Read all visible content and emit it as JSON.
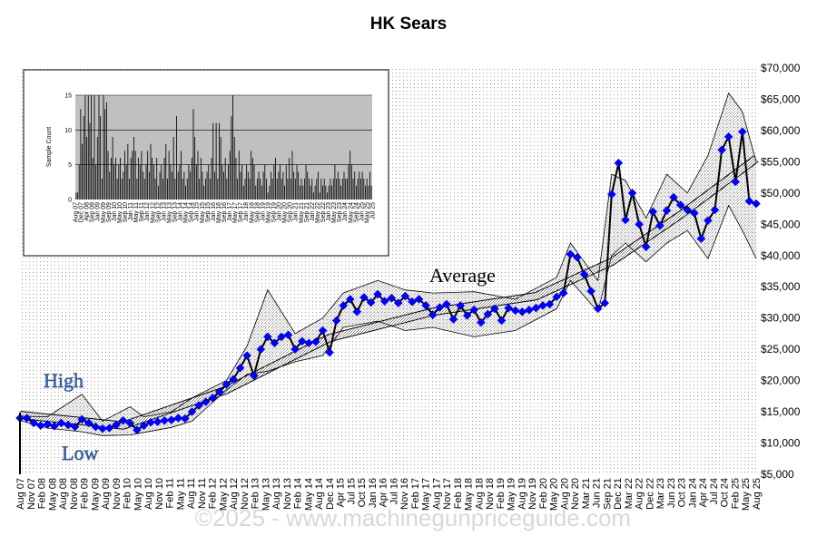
{
  "chart_data": {
    "type": "line",
    "title": "HK Sears",
    "watermark": "©2025 - www.machinegunpriceguide.com",
    "annotations": {
      "high": "High",
      "low": "Low",
      "average": "Average"
    },
    "y_axis": {
      "min": 5000,
      "max": 70000,
      "step": 5000,
      "tick_labels": [
        "$5,000",
        "$10,000",
        "$15,000",
        "$20,000",
        "$25,000",
        "$30,000",
        "$35,000",
        "$40,000",
        "$45,000",
        "$50,000",
        "$55,000",
        "$60,000",
        "$65,000",
        "$70,000"
      ]
    },
    "x_axis": {
      "tick_labels": [
        "Aug 07",
        "Nov 07",
        "Feb 08",
        "May 08",
        "Aug 08",
        "Nov 08",
        "Feb 09",
        "May 09",
        "Aug 09",
        "Nov 09",
        "Feb 10",
        "May 10",
        "Aug 10",
        "Nov 10",
        "Feb 11",
        "May 11",
        "Aug 11",
        "Nov 11",
        "Feb 12",
        "May 12",
        "Aug 12",
        "Nov 12",
        "Feb 13",
        "May 13",
        "Aug 13",
        "Nov 13",
        "Feb 14",
        "May 14",
        "Aug 14",
        "Dec 14",
        "Apr 15",
        "Jul 15",
        "Oct 15",
        "Jan 16",
        "Apr 16",
        "Jul 16",
        "Nov 16",
        "Feb 17",
        "May 17",
        "Aug 17",
        "Nov 17",
        "Feb 18",
        "May 18",
        "Aug 18",
        "Nov 18",
        "Feb 19",
        "May 19",
        "Aug 19",
        "Nov 19",
        "Feb 20",
        "May 20",
        "Aug 20",
        "Nov 20",
        "Mar 21",
        "Jun 21",
        "Sep 21",
        "Dec 21",
        "Mar 22",
        "Aug 22",
        "Dec 22",
        "Mar 23",
        "Jun 23",
        "Oct 23",
        "Jan 24",
        "Apr 24",
        "Jul 24",
        "Oct 24",
        "Feb 25",
        "May 25",
        "Aug 25"
      ]
    },
    "grid": true,
    "series": [
      {
        "name": "Average",
        "color": "#0000ff",
        "values": [
          [
            0,
            14000
          ],
          [
            1,
            14000
          ],
          [
            2,
            13200
          ],
          [
            3,
            12800
          ],
          [
            4,
            13000
          ],
          [
            5,
            12700
          ],
          [
            6,
            13200
          ],
          [
            7,
            12900
          ],
          [
            8,
            12600
          ],
          [
            9,
            13800
          ],
          [
            10,
            13200
          ],
          [
            11,
            12600
          ],
          [
            12,
            12300
          ],
          [
            13,
            12400
          ],
          [
            14,
            12900
          ],
          [
            15,
            13600
          ],
          [
            16,
            13200
          ],
          [
            17,
            12100
          ],
          [
            18,
            12800
          ],
          [
            19,
            13300
          ],
          [
            20,
            13400
          ],
          [
            21,
            13600
          ],
          [
            22,
            13700
          ],
          [
            23,
            14000
          ],
          [
            24,
            13900
          ],
          [
            25,
            15000
          ],
          [
            26,
            16000
          ],
          [
            27,
            16600
          ],
          [
            28,
            17200
          ],
          [
            29,
            18200
          ],
          [
            30,
            19400
          ],
          [
            31,
            20200
          ],
          [
            32,
            22000
          ],
          [
            33,
            24000
          ],
          [
            34,
            20800
          ],
          [
            35,
            25000
          ],
          [
            36,
            27000
          ],
          [
            37,
            26000
          ],
          [
            38,
            27000
          ],
          [
            39,
            27300
          ],
          [
            40,
            25000
          ],
          [
            41,
            26300
          ],
          [
            42,
            26000
          ],
          [
            43,
            26200
          ],
          [
            44,
            28000
          ],
          [
            45,
            24500
          ],
          [
            46,
            29600
          ],
          [
            47,
            32000
          ],
          [
            48,
            33000
          ],
          [
            49,
            31000
          ],
          [
            50,
            33300
          ],
          [
            51,
            32500
          ],
          [
            52,
            33800
          ],
          [
            53,
            32700
          ],
          [
            54,
            33200
          ],
          [
            55,
            32400
          ],
          [
            56,
            33500
          ],
          [
            57,
            32600
          ],
          [
            58,
            33000
          ],
          [
            59,
            32000
          ],
          [
            60,
            30500
          ],
          [
            61,
            31700
          ],
          [
            62,
            32200
          ],
          [
            63,
            29800
          ],
          [
            64,
            32000
          ],
          [
            65,
            30400
          ],
          [
            66,
            31300
          ],
          [
            67,
            29300
          ],
          [
            68,
            30600
          ],
          [
            69,
            31500
          ],
          [
            70,
            29600
          ],
          [
            71,
            31600
          ],
          [
            72,
            31200
          ],
          [
            73,
            31000
          ],
          [
            74,
            31300
          ],
          [
            75,
            31600
          ],
          [
            76,
            32000
          ],
          [
            77,
            32200
          ],
          [
            78,
            33400
          ],
          [
            79,
            34000
          ],
          [
            80,
            40200
          ],
          [
            81,
            39700
          ],
          [
            82,
            37000
          ],
          [
            83,
            34300
          ],
          [
            84,
            31500
          ],
          [
            85,
            32400
          ],
          [
            86,
            49800
          ],
          [
            87,
            54800
          ],
          [
            88,
            45700
          ],
          [
            89,
            50000
          ],
          [
            90,
            45000
          ],
          [
            91,
            41400
          ],
          [
            92,
            47000
          ],
          [
            93,
            44800
          ],
          [
            94,
            47200
          ],
          [
            95,
            49300
          ],
          [
            96,
            48100
          ],
          [
            97,
            47300
          ],
          [
            98,
            46800
          ],
          [
            99,
            42700
          ],
          [
            100,
            45600
          ],
          [
            101,
            47300
          ],
          [
            102,
            56900
          ],
          [
            103,
            59000
          ],
          [
            104,
            51800
          ],
          [
            105,
            59800
          ],
          [
            106,
            48700
          ],
          [
            107,
            48300
          ]
        ]
      },
      {
        "name": "High",
        "values": [
          [
            0,
            14300
          ],
          [
            4,
            14200
          ],
          [
            9,
            17800
          ],
          [
            12,
            13500
          ],
          [
            16,
            15800
          ],
          [
            18,
            14200
          ],
          [
            22,
            15000
          ],
          [
            25,
            17200
          ],
          [
            30,
            20000
          ],
          [
            33,
            25500
          ],
          [
            36,
            34500
          ],
          [
            40,
            27500
          ],
          [
            44,
            30000
          ],
          [
            47,
            34000
          ],
          [
            52,
            36000
          ],
          [
            56,
            34500
          ],
          [
            60,
            34000
          ],
          [
            66,
            34200
          ],
          [
            72,
            33000
          ],
          [
            78,
            36500
          ],
          [
            80,
            42000
          ],
          [
            84,
            36000
          ],
          [
            86,
            53000
          ],
          [
            88,
            52000
          ],
          [
            91,
            46000
          ],
          [
            94,
            53000
          ],
          [
            97,
            50000
          ],
          [
            100,
            56000
          ],
          [
            103,
            66000
          ],
          [
            105,
            63000
          ],
          [
            107,
            55000
          ]
        ]
      },
      {
        "name": "Low",
        "values": [
          [
            0,
            13600
          ],
          [
            4,
            12400
          ],
          [
            9,
            11800
          ],
          [
            12,
            11200
          ],
          [
            16,
            11300
          ],
          [
            18,
            11700
          ],
          [
            22,
            12500
          ],
          [
            25,
            13500
          ],
          [
            30,
            18500
          ],
          [
            33,
            21000
          ],
          [
            36,
            21500
          ],
          [
            40,
            23000
          ],
          [
            44,
            24000
          ],
          [
            47,
            28500
          ],
          [
            52,
            29500
          ],
          [
            56,
            28000
          ],
          [
            60,
            28500
          ],
          [
            66,
            27000
          ],
          [
            72,
            28000
          ],
          [
            78,
            31500
          ],
          [
            80,
            36000
          ],
          [
            84,
            31000
          ],
          [
            86,
            40000
          ],
          [
            88,
            42000
          ],
          [
            91,
            39000
          ],
          [
            94,
            42000
          ],
          [
            97,
            44000
          ],
          [
            100,
            39500
          ],
          [
            103,
            48000
          ],
          [
            105,
            44000
          ],
          [
            107,
            39500
          ]
        ]
      }
    ],
    "trend": {
      "name": "Average",
      "values": [
        [
          0,
          14500
        ],
        [
          15,
          12800
        ],
        [
          30,
          18500
        ],
        [
          45,
          26800
        ],
        [
          60,
          31000
        ],
        [
          75,
          33500
        ],
        [
          86,
          39000
        ],
        [
          96,
          46500
        ],
        [
          107,
          55500
        ]
      ]
    },
    "inset": {
      "type": "bar",
      "ylabel": "Sample Count",
      "ylim": [
        0,
        15
      ],
      "y_tick_labels": [
        "0",
        "5",
        "10",
        "15"
      ],
      "x_tick_labels": [
        "Aug 07",
        "Dec 07",
        "Apr 08",
        "Sep 08",
        "Jan 09",
        "May 09",
        "Sep 09",
        "Jan 10",
        "May 10",
        "Sep 10",
        "Jan 11",
        "May 11",
        "Sep 11",
        "Jan 12",
        "May 12",
        "Sep 12",
        "Jan 13",
        "May 13",
        "Sep 13",
        "Jan 14",
        "May 14",
        "Sep 14",
        "Jan 15",
        "May 15",
        "Sep 15",
        "Jan 16",
        "May 16",
        "Sep 16",
        "Jan 17",
        "May 17",
        "Sep 17",
        "Jan 18",
        "May 18",
        "Sep 18",
        "Jan 19",
        "May 19",
        "Sep 19",
        "Jan 20",
        "May 20",
        "Sep 20",
        "Jan 21",
        "May 21",
        "Sep 21",
        "Jan 22",
        "May 22",
        "Sep 22",
        "Jan 23",
        "May 23",
        "Sep 23",
        "Jan 24",
        "May 24",
        "Sep 24",
        "Jan 25",
        "May 25",
        "Jul 25"
      ],
      "values": [
        1,
        1,
        5,
        13,
        8,
        12,
        15,
        9,
        15,
        11,
        15,
        6,
        15,
        5,
        9,
        15,
        12,
        3,
        15,
        13,
        14,
        7,
        4,
        6,
        9,
        5,
        6,
        3,
        5,
        6,
        3,
        4,
        7,
        5,
        8,
        3,
        6,
        7,
        9,
        7,
        3,
        6,
        5,
        7,
        4,
        3,
        5,
        7,
        4,
        8,
        6,
        5,
        3,
        6,
        2,
        4,
        5,
        3,
        6,
        8,
        3,
        7,
        5,
        4,
        9,
        3,
        12,
        4,
        5,
        7,
        3,
        4,
        2,
        3,
        5,
        4,
        6,
        13,
        9,
        5,
        7,
        3,
        6,
        4,
        2,
        3,
        4,
        5,
        3,
        6,
        11,
        4,
        11,
        3,
        11,
        9,
        5,
        4,
        6,
        3,
        5,
        7,
        12,
        15,
        9,
        6,
        3,
        7,
        4,
        5,
        2,
        3,
        5,
        4,
        3,
        7,
        6,
        5,
        2,
        3,
        4,
        3,
        2,
        4,
        5,
        3,
        1,
        2,
        4,
        3,
        5,
        6,
        3,
        4,
        5,
        3,
        4,
        2,
        5,
        3,
        6,
        3,
        7,
        4,
        3,
        5,
        4,
        2,
        3,
        2,
        3,
        5,
        4,
        3,
        2,
        3,
        1,
        2,
        3,
        4,
        1,
        3,
        2,
        3,
        2,
        1,
        2,
        3,
        2,
        3,
        5,
        3,
        4,
        3,
        2,
        3,
        4,
        3,
        3,
        5,
        7,
        5,
        3,
        4,
        2,
        3,
        4,
        3,
        4,
        3,
        2,
        3,
        2,
        4,
        2
      ]
    }
  }
}
